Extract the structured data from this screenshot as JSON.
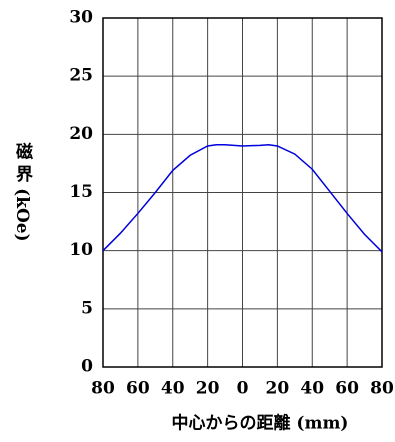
{
  "chart_data": {
    "type": "line",
    "x_label": "中心からの距離 (mm)",
    "y_label": "磁 界 (kOe)",
    "x": [
      -80,
      -70,
      -60,
      -50,
      -40,
      -30,
      -20,
      -15,
      -10,
      0,
      10,
      15,
      20,
      30,
      40,
      50,
      60,
      70,
      80
    ],
    "series": [
      {
        "name": "磁界",
        "color": "#0000dd",
        "values": [
          10,
          11.5,
          13.2,
          15,
          16.9,
          18.2,
          19,
          19.1,
          19.1,
          19,
          19.05,
          19.1,
          19,
          18.3,
          17,
          15.1,
          13.2,
          11.4,
          9.9
        ]
      }
    ],
    "xlim": [
      -80,
      80
    ],
    "xticks": [
      {
        "value": -80,
        "label": "80"
      },
      {
        "value": -60,
        "label": "60"
      },
      {
        "value": -40,
        "label": "40"
      },
      {
        "value": -20,
        "label": "20"
      },
      0,
      20,
      40,
      60,
      80
    ],
    "ylim": [
      0,
      30
    ],
    "yticks": [
      0,
      5,
      10,
      15,
      20,
      25,
      30
    ],
    "grid": true
  }
}
